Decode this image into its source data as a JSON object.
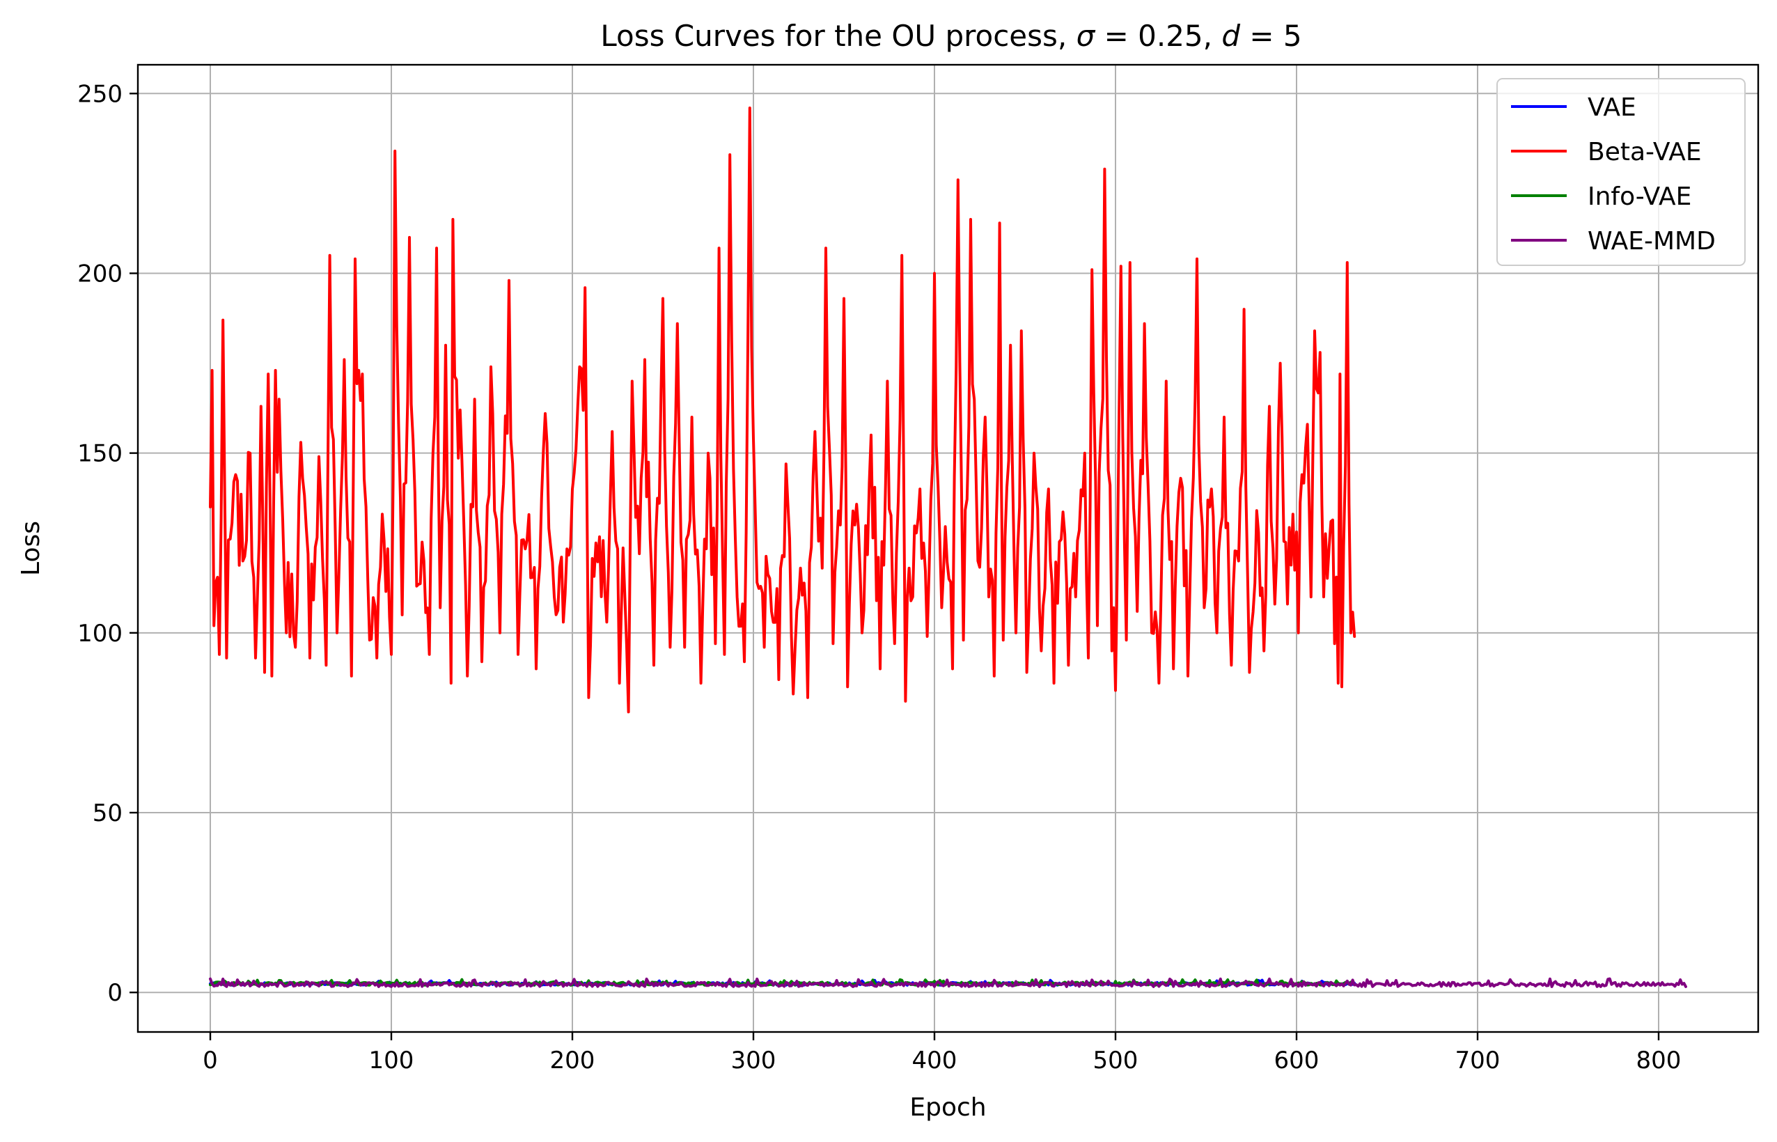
{
  "chart_data": {
    "type": "line",
    "title": "Loss Curves for the OU process, σ = 0.25, d = 5",
    "title_parts": [
      "Loss Curves for the OU process, ",
      "σ",
      " = 0.25, ",
      "d",
      " = 5"
    ],
    "xlabel": "Epoch",
    "ylabel": "Loss",
    "xlim": [
      -40,
      855
    ],
    "ylim": [
      -11,
      258
    ],
    "xticks": [
      0,
      100,
      200,
      300,
      400,
      500,
      600,
      700,
      800
    ],
    "yticks": [
      0,
      50,
      100,
      150,
      200,
      250
    ],
    "grid": true,
    "legend_position": "top-right",
    "series": [
      {
        "name": "VAE",
        "color": "#0000ff",
        "length": 632,
        "low": 2.0,
        "high": 3.4
      },
      {
        "name": "Beta-VAE",
        "color": "#ff0000",
        "length": 632,
        "low": 79,
        "high": 246,
        "anchors": [
          [
            0,
            135
          ],
          [
            1,
            173
          ],
          [
            2,
            102
          ],
          [
            3,
            114
          ],
          [
            5,
            94
          ],
          [
            7,
            187
          ],
          [
            9,
            93
          ],
          [
            13,
            142
          ],
          [
            18,
            120
          ],
          [
            22,
            150
          ],
          [
            25,
            93
          ],
          [
            28,
            163
          ],
          [
            30,
            89
          ],
          [
            32,
            172
          ],
          [
            34,
            88
          ],
          [
            36,
            173
          ],
          [
            38,
            165
          ],
          [
            42,
            100
          ],
          [
            47,
            96
          ],
          [
            50,
            153
          ],
          [
            55,
            93
          ],
          [
            60,
            149
          ],
          [
            64,
            91
          ],
          [
            66,
            205
          ],
          [
            70,
            100
          ],
          [
            74,
            176
          ],
          [
            78,
            88
          ],
          [
            80,
            204
          ],
          [
            84,
            172
          ],
          [
            88,
            98
          ],
          [
            92,
            93
          ],
          [
            95,
            133
          ],
          [
            100,
            94
          ],
          [
            102,
            234
          ],
          [
            106,
            105
          ],
          [
            110,
            210
          ],
          [
            114,
            113
          ],
          [
            118,
            120
          ],
          [
            121,
            94
          ],
          [
            125,
            207
          ],
          [
            127,
            107
          ],
          [
            130,
            180
          ],
          [
            133,
            86
          ],
          [
            134,
            215
          ],
          [
            138,
            162
          ],
          [
            142,
            88
          ],
          [
            146,
            165
          ],
          [
            150,
            92
          ],
          [
            155,
            174
          ],
          [
            160,
            100
          ],
          [
            165,
            198
          ],
          [
            170,
            94
          ],
          [
            175,
            126
          ],
          [
            180,
            90
          ],
          [
            185,
            161
          ],
          [
            190,
            110
          ],
          [
            195,
            103
          ],
          [
            200,
            140
          ],
          [
            204,
            174
          ],
          [
            207,
            196
          ],
          [
            209,
            82
          ],
          [
            213,
            125
          ],
          [
            219,
            103
          ],
          [
            222,
            156
          ],
          [
            226,
            86
          ],
          [
            229,
            110
          ],
          [
            231,
            78
          ],
          [
            233,
            170
          ],
          [
            237,
            122
          ],
          [
            240,
            176
          ],
          [
            245,
            91
          ],
          [
            250,
            193
          ],
          [
            254,
            96
          ],
          [
            258,
            186
          ],
          [
            262,
            96
          ],
          [
            266,
            160
          ],
          [
            271,
            86
          ],
          [
            275,
            150
          ],
          [
            279,
            97
          ],
          [
            281,
            207
          ],
          [
            284,
            94
          ],
          [
            287,
            233
          ],
          [
            291,
            110
          ],
          [
            295,
            92
          ],
          [
            298,
            246
          ],
          [
            302,
            114
          ],
          [
            306,
            96
          ],
          [
            310,
            106
          ],
          [
            314,
            87
          ],
          [
            318,
            147
          ],
          [
            322,
            83
          ],
          [
            326,
            118
          ],
          [
            330,
            82
          ],
          [
            334,
            156
          ],
          [
            338,
            118
          ],
          [
            340,
            207
          ],
          [
            344,
            97
          ],
          [
            348,
            130
          ],
          [
            350,
            193
          ],
          [
            352,
            85
          ],
          [
            356,
            130
          ],
          [
            360,
            100
          ],
          [
            365,
            155
          ],
          [
            370,
            90
          ],
          [
            374,
            170
          ],
          [
            378,
            97
          ],
          [
            382,
            205
          ],
          [
            384,
            81
          ],
          [
            388,
            110
          ],
          [
            392,
            140
          ],
          [
            396,
            99
          ],
          [
            400,
            200
          ],
          [
            404,
            107
          ],
          [
            408,
            115
          ],
          [
            410,
            90
          ],
          [
            413,
            226
          ],
          [
            416,
            98
          ],
          [
            420,
            215
          ],
          [
            424,
            120
          ],
          [
            428,
            160
          ],
          [
            430,
            110
          ],
          [
            433,
            88
          ],
          [
            436,
            214
          ],
          [
            438,
            98
          ],
          [
            442,
            180
          ],
          [
            445,
            100
          ],
          [
            448,
            184
          ],
          [
            451,
            89
          ],
          [
            455,
            150
          ],
          [
            459,
            95
          ],
          [
            463,
            140
          ],
          [
            466,
            86
          ],
          [
            470,
            126
          ],
          [
            474,
            91
          ],
          [
            478,
            110
          ],
          [
            483,
            150
          ],
          [
            485,
            93
          ],
          [
            487,
            201
          ],
          [
            490,
            102
          ],
          [
            494,
            229
          ],
          [
            498,
            95
          ],
          [
            500,
            84
          ],
          [
            503,
            202
          ],
          [
            506,
            98
          ],
          [
            508,
            203
          ],
          [
            512,
            106
          ],
          [
            516,
            186
          ],
          [
            520,
            100
          ],
          [
            524,
            86
          ],
          [
            528,
            170
          ],
          [
            532,
            90
          ],
          [
            536,
            143
          ],
          [
            540,
            88
          ],
          [
            545,
            204
          ],
          [
            549,
            107
          ],
          [
            553,
            140
          ],
          [
            556,
            100
          ],
          [
            560,
            160
          ],
          [
            564,
            91
          ],
          [
            568,
            120
          ],
          [
            571,
            190
          ],
          [
            574,
            89
          ],
          [
            578,
            134
          ],
          [
            582,
            95
          ],
          [
            585,
            163
          ],
          [
            588,
            108
          ],
          [
            591,
            175
          ],
          [
            595,
            108
          ],
          [
            598,
            133
          ],
          [
            601,
            100
          ],
          [
            603,
            144
          ],
          [
            606,
            158
          ],
          [
            608,
            110
          ],
          [
            610,
            184
          ],
          [
            613,
            178
          ],
          [
            615,
            110
          ],
          [
            619,
            131
          ],
          [
            621,
            97
          ],
          [
            623,
            86
          ],
          [
            624,
            172
          ],
          [
            625,
            85
          ],
          [
            626,
            124
          ],
          [
            628,
            203
          ],
          [
            630,
            100
          ],
          [
            632,
            99
          ]
        ]
      },
      {
        "name": "Info-VAE",
        "color": "#008000",
        "length": 632,
        "low": 2.0,
        "high": 3.6
      },
      {
        "name": "WAE-MMD",
        "color": "#800080",
        "length": 815,
        "low": 1.6,
        "high": 3.8
      }
    ]
  }
}
